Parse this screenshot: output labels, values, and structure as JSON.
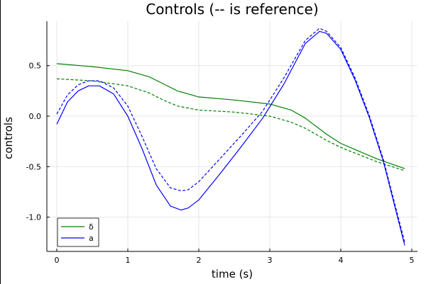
{
  "chart_data": {
    "type": "line",
    "title": "Controls (-- is reference)",
    "xlabel": "time (s)",
    "ylabel": "controls",
    "xlim": [
      -0.14,
      5.08
    ],
    "ylim": [
      -1.34,
      0.94
    ],
    "xticks": [
      0,
      1,
      2,
      3,
      4,
      5
    ],
    "xtick_labels": [
      "0",
      "1",
      "2",
      "3",
      "4",
      "5"
    ],
    "yticks": [
      0.5,
      0.0,
      -0.5,
      -1.0
    ],
    "ytick_labels": [
      "0.5",
      "0.0",
      "-0.5",
      "-1.0"
    ],
    "grid": true,
    "legend_position": "bottom-left",
    "series": [
      {
        "name": "δ",
        "color": "#008000",
        "dash": "solid",
        "x": [
          0,
          0.5,
          1.0,
          1.3,
          1.5,
          1.7,
          2.0,
          2.5,
          3.0,
          3.3,
          3.5,
          3.8,
          4.0,
          4.5,
          4.9
        ],
        "y": [
          0.52,
          0.49,
          0.45,
          0.39,
          0.32,
          0.25,
          0.19,
          0.16,
          0.12,
          0.06,
          -0.02,
          -0.18,
          -0.27,
          -0.42,
          -0.52
        ]
      },
      {
        "name": "",
        "color": "#008000",
        "dash": "dashed",
        "x": [
          0,
          0.5,
          1.0,
          1.3,
          1.5,
          1.7,
          2.0,
          2.5,
          3.0,
          3.3,
          3.5,
          3.8,
          4.0,
          4.5,
          4.9
        ],
        "y": [
          0.37,
          0.35,
          0.3,
          0.23,
          0.16,
          0.1,
          0.06,
          0.04,
          0.0,
          -0.06,
          -0.12,
          -0.24,
          -0.31,
          -0.45,
          -0.54
        ]
      },
      {
        "name": "a",
        "color": "#0000ff",
        "dash": "solid",
        "x": [
          0,
          0.15,
          0.3,
          0.45,
          0.6,
          0.8,
          1.0,
          1.2,
          1.4,
          1.6,
          1.75,
          1.85,
          2.0,
          2.3,
          2.6,
          2.9,
          3.2,
          3.5,
          3.7,
          3.8,
          4.0,
          4.2,
          4.4,
          4.6,
          4.9
        ],
        "y": [
          -0.08,
          0.14,
          0.25,
          0.3,
          0.3,
          0.22,
          0.0,
          -0.32,
          -0.68,
          -0.89,
          -0.93,
          -0.91,
          -0.83,
          -0.57,
          -0.3,
          -0.02,
          0.32,
          0.72,
          0.84,
          0.82,
          0.66,
          0.36,
          -0.01,
          -0.45,
          -1.28
        ]
      },
      {
        "name": "",
        "color": "#0000ff",
        "dash": "dashed",
        "x": [
          0,
          0.15,
          0.3,
          0.45,
          0.6,
          0.8,
          1.0,
          1.2,
          1.4,
          1.6,
          1.75,
          1.85,
          2.0,
          2.3,
          2.6,
          2.9,
          3.2,
          3.5,
          3.7,
          3.8,
          4.0,
          4.2,
          4.4,
          4.6,
          4.9
        ],
        "y": [
          0.02,
          0.21,
          0.31,
          0.35,
          0.35,
          0.28,
          0.1,
          -0.2,
          -0.52,
          -0.71,
          -0.74,
          -0.73,
          -0.65,
          -0.42,
          -0.19,
          0.05,
          0.38,
          0.75,
          0.87,
          0.84,
          0.68,
          0.38,
          0.01,
          -0.43,
          -1.25
        ]
      }
    ]
  }
}
